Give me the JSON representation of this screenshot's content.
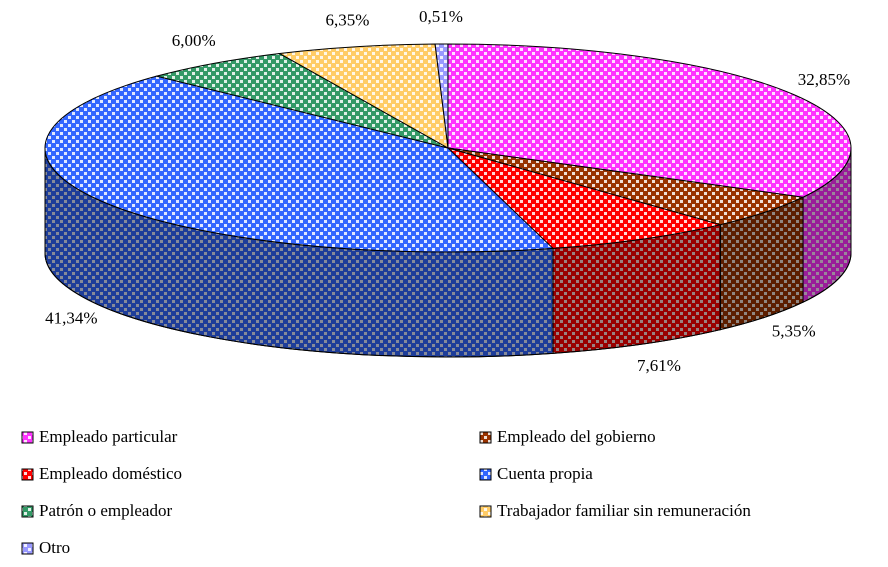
{
  "chart_data": {
    "type": "pie3d",
    "categories": [
      "Empleado particular",
      "Empleado del gobierno",
      "Empleado doméstico",
      "Cuenta propia",
      "Patrón o empleador",
      "Trabajador familiar sin remuneración",
      "Otro"
    ],
    "values": [
      32.85,
      5.35,
      7.61,
      41.34,
      6.0,
      6.35,
      0.51
    ],
    "value_labels": [
      "32,85%",
      "5,35%",
      "7,61%",
      "41,34%",
      "6,00%",
      "6,35%",
      "0,51%"
    ],
    "colors": [
      "#ff33ff",
      "#993300",
      "#ff0000",
      "#3366ff",
      "#339966",
      "#ffcc66",
      "#9999ff"
    ]
  }
}
